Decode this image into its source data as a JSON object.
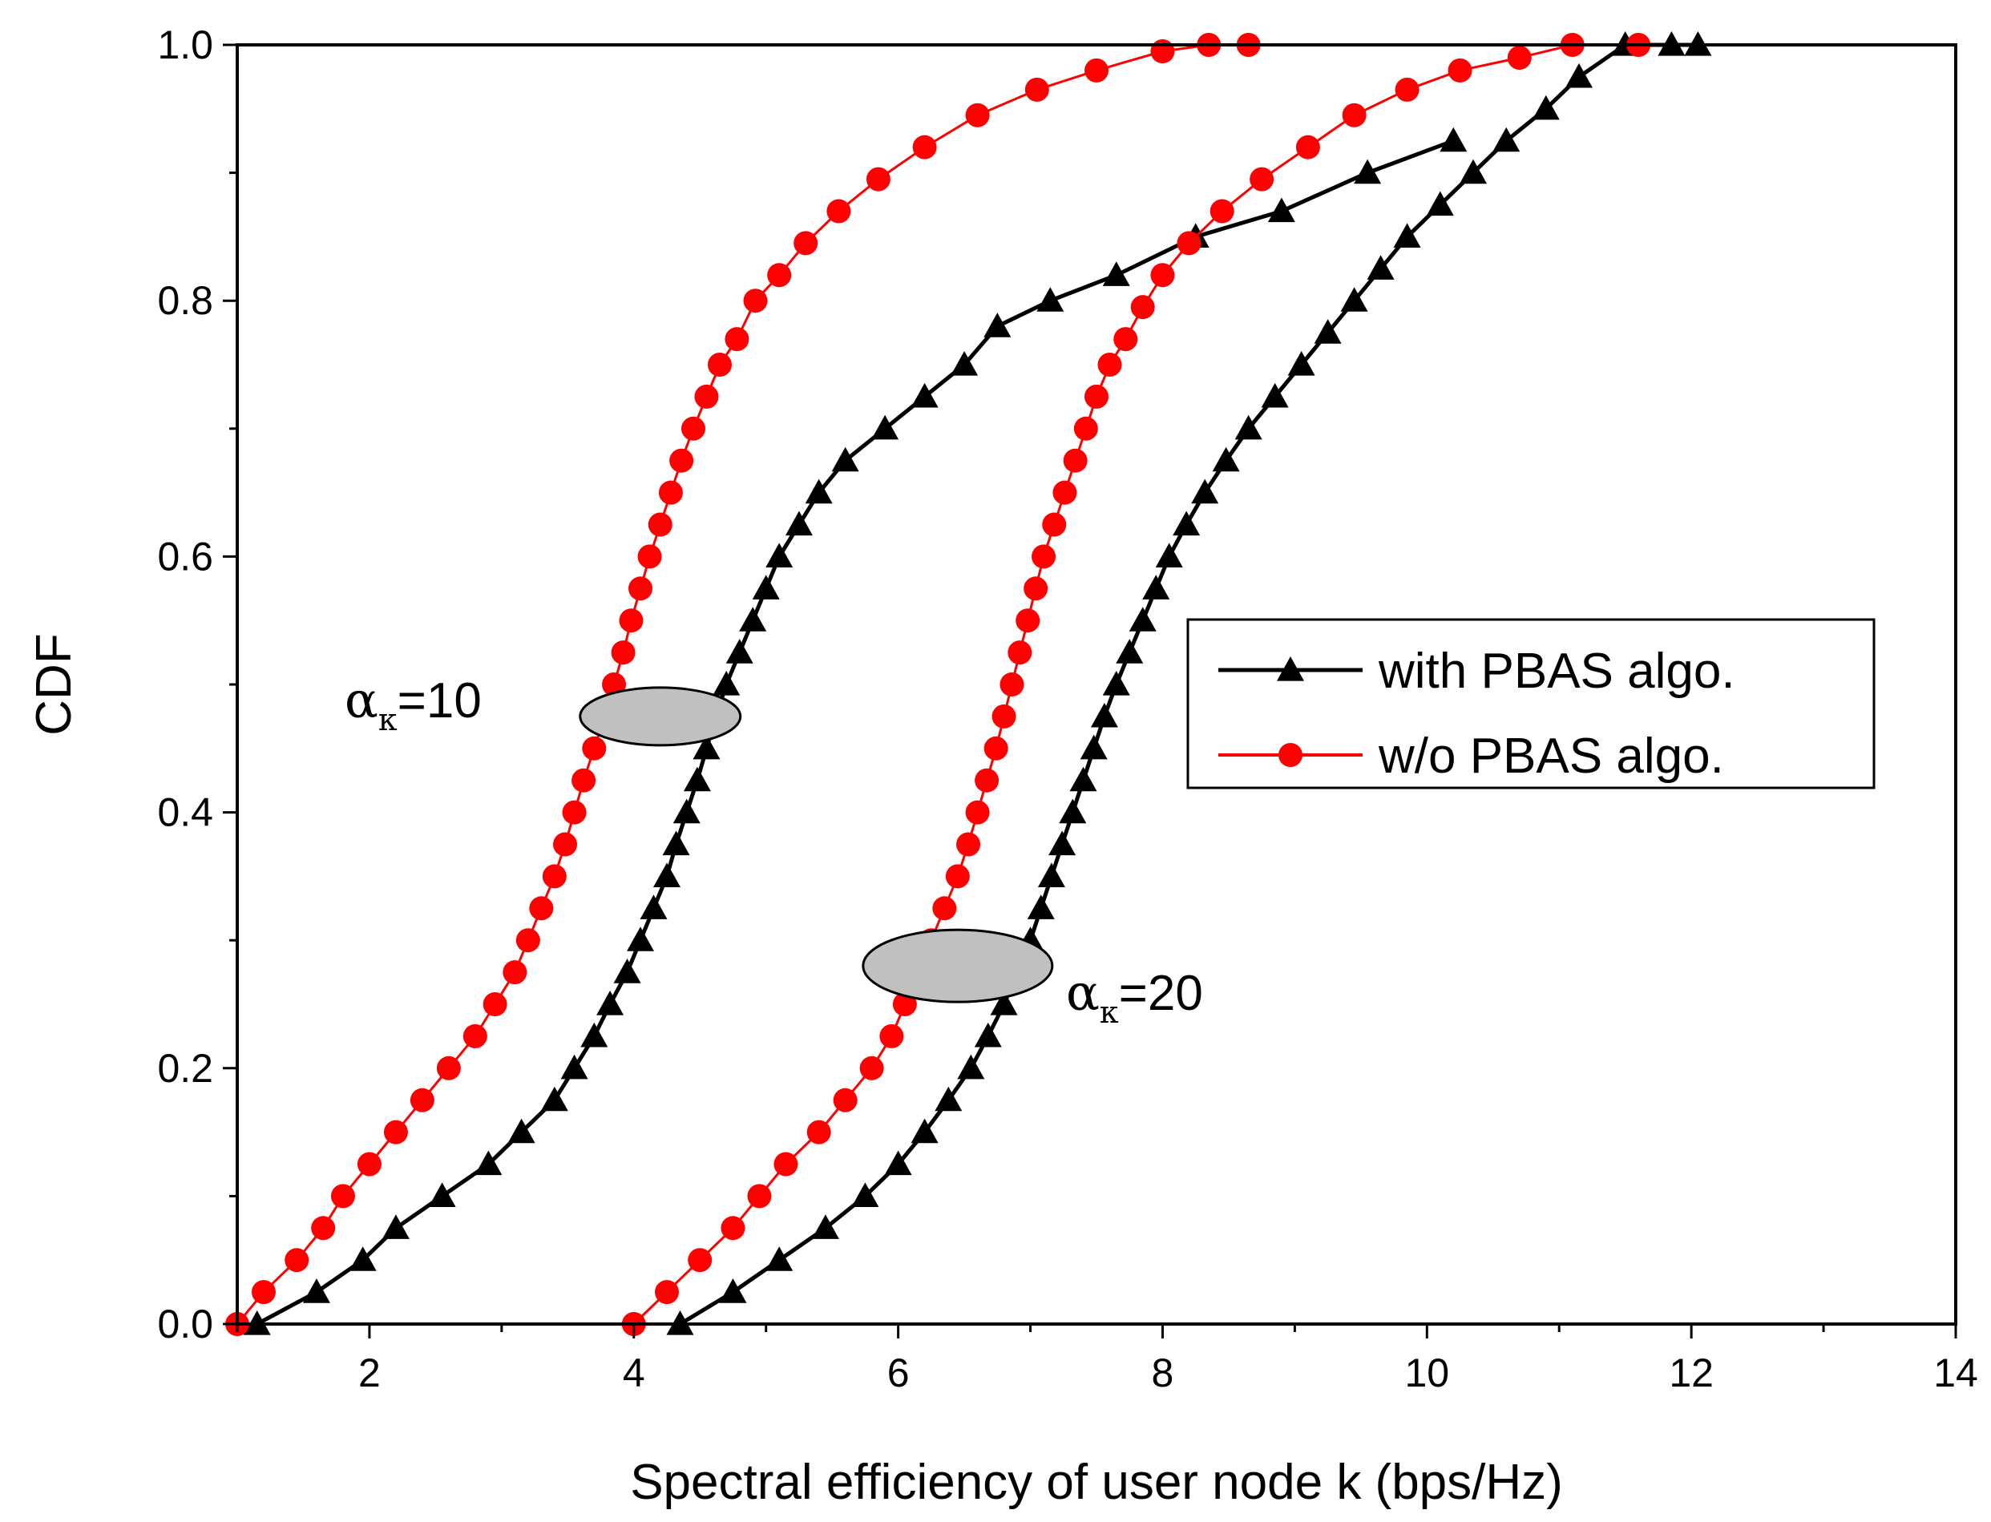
{
  "chart_data": {
    "type": "line",
    "title": "",
    "xlabel": "Spectral efficiency of user node k (bps/Hz)",
    "ylabel": "CDF",
    "xlim": [
      1,
      14
    ],
    "ylim": [
      0,
      1
    ],
    "x_ticks": [
      "2",
      "4",
      "6",
      "8",
      "10",
      "12",
      "14"
    ],
    "y_ticks": [
      "0.0",
      "0.2",
      "0.4",
      "0.6",
      "0.8",
      "1.0"
    ],
    "grid": false,
    "legend_position": "right-middle",
    "series": [
      {
        "name": "with PBAS algo.",
        "legend_label": "with PBAS algo.",
        "color": "#000000",
        "marker": "triangle",
        "group": "alpha=10",
        "x": [
          1.15,
          1.6,
          1.95,
          2.2,
          2.55,
          2.9,
          3.15,
          3.4,
          3.55,
          3.7,
          3.82,
          3.95,
          4.05,
          4.15,
          4.25,
          4.32,
          4.4,
          4.48,
          4.55,
          4.62,
          4.7,
          4.8,
          4.9,
          5.0,
          5.1,
          5.25,
          5.4,
          5.6,
          5.9,
          6.2,
          6.5,
          6.75,
          7.15,
          7.65,
          8.25,
          8.9,
          9.55,
          10.2
        ],
        "y": [
          0.0,
          0.025,
          0.05,
          0.075,
          0.1,
          0.125,
          0.15,
          0.175,
          0.2,
          0.225,
          0.25,
          0.275,
          0.3,
          0.325,
          0.35,
          0.375,
          0.4,
          0.425,
          0.45,
          0.475,
          0.5,
          0.525,
          0.55,
          0.575,
          0.6,
          0.625,
          0.65,
          0.675,
          0.7,
          0.725,
          0.75,
          0.78,
          0.8,
          0.82,
          0.85,
          0.87,
          0.9,
          0.925
        ]
      },
      {
        "name": "w/o PBAS algo.",
        "legend_label": "w/o PBAS algo.",
        "color": "#ff0000",
        "marker": "circle",
        "group": "alpha=10",
        "x": [
          1.0,
          1.2,
          1.45,
          1.65,
          1.8,
          2.0,
          2.2,
          2.4,
          2.6,
          2.8,
          2.95,
          3.1,
          3.2,
          3.3,
          3.4,
          3.48,
          3.55,
          3.62,
          3.7,
          3.78,
          3.85,
          3.92,
          3.98,
          4.05,
          4.12,
          4.2,
          4.28,
          4.36,
          4.45,
          4.55,
          4.65,
          4.78,
          4.92,
          5.1,
          5.3,
          5.55,
          5.85,
          6.2,
          6.6,
          7.05,
          7.5,
          8.0,
          8.35,
          8.65
        ],
        "y": [
          0.0,
          0.025,
          0.05,
          0.075,
          0.1,
          0.125,
          0.15,
          0.175,
          0.2,
          0.225,
          0.25,
          0.275,
          0.3,
          0.325,
          0.35,
          0.375,
          0.4,
          0.425,
          0.45,
          0.475,
          0.5,
          0.525,
          0.55,
          0.575,
          0.6,
          0.625,
          0.65,
          0.675,
          0.7,
          0.725,
          0.75,
          0.77,
          0.8,
          0.82,
          0.845,
          0.87,
          0.895,
          0.92,
          0.945,
          0.965,
          0.98,
          0.995,
          1.0,
          1.0
        ]
      },
      {
        "name": "with PBAS algo.",
        "color": "#000000",
        "marker": "triangle",
        "group": "alpha=20",
        "x": [
          4.35,
          4.75,
          5.1,
          5.45,
          5.75,
          6.0,
          6.2,
          6.38,
          6.55,
          6.68,
          6.8,
          6.9,
          7.0,
          7.08,
          7.16,
          7.24,
          7.32,
          7.4,
          7.48,
          7.56,
          7.65,
          7.75,
          7.85,
          7.95,
          8.05,
          8.18,
          8.32,
          8.48,
          8.65,
          8.85,
          9.05,
          9.25,
          9.45,
          9.65,
          9.85,
          10.1,
          10.35,
          10.6,
          10.9,
          11.15,
          11.5,
          11.85,
          12.05
        ],
        "y": [
          0.0,
          0.025,
          0.05,
          0.075,
          0.1,
          0.125,
          0.15,
          0.175,
          0.2,
          0.225,
          0.25,
          0.275,
          0.3,
          0.325,
          0.35,
          0.375,
          0.4,
          0.425,
          0.45,
          0.475,
          0.5,
          0.525,
          0.55,
          0.575,
          0.6,
          0.625,
          0.65,
          0.675,
          0.7,
          0.725,
          0.75,
          0.775,
          0.8,
          0.825,
          0.85,
          0.875,
          0.9,
          0.925,
          0.95,
          0.975,
          1.0,
          1.0,
          1.0
        ]
      },
      {
        "name": "w/o PBAS algo.",
        "color": "#ff0000",
        "marker": "circle",
        "group": "alpha=20",
        "x": [
          4.0,
          4.25,
          4.5,
          4.75,
          4.95,
          5.15,
          5.4,
          5.6,
          5.8,
          5.95,
          6.05,
          6.15,
          6.25,
          6.35,
          6.45,
          6.53,
          6.6,
          6.67,
          6.74,
          6.8,
          6.86,
          6.92,
          6.98,
          7.04,
          7.1,
          7.18,
          7.26,
          7.34,
          7.42,
          7.5,
          7.6,
          7.72,
          7.85,
          8.0,
          8.2,
          8.45,
          8.75,
          9.1,
          9.45,
          9.85,
          10.25,
          10.7,
          11.1,
          11.6
        ],
        "y": [
          0.0,
          0.025,
          0.05,
          0.075,
          0.1,
          0.125,
          0.15,
          0.175,
          0.2,
          0.225,
          0.25,
          0.275,
          0.3,
          0.325,
          0.35,
          0.375,
          0.4,
          0.425,
          0.45,
          0.475,
          0.5,
          0.525,
          0.55,
          0.575,
          0.6,
          0.625,
          0.65,
          0.675,
          0.7,
          0.725,
          0.75,
          0.77,
          0.795,
          0.82,
          0.845,
          0.87,
          0.895,
          0.92,
          0.945,
          0.965,
          0.98,
          0.99,
          1.0,
          1.0
        ]
      }
    ],
    "annotations": [
      {
        "text_greek": "α",
        "subscript": "κ",
        "value": "=10",
        "label": "α_κ=10",
        "ellipse_center": [
          4.2,
          0.475
        ]
      },
      {
        "text_greek": "α",
        "subscript": "κ",
        "value": "=20",
        "label": "α_κ=20",
        "ellipse_center": [
          6.45,
          0.28
        ]
      }
    ]
  }
}
